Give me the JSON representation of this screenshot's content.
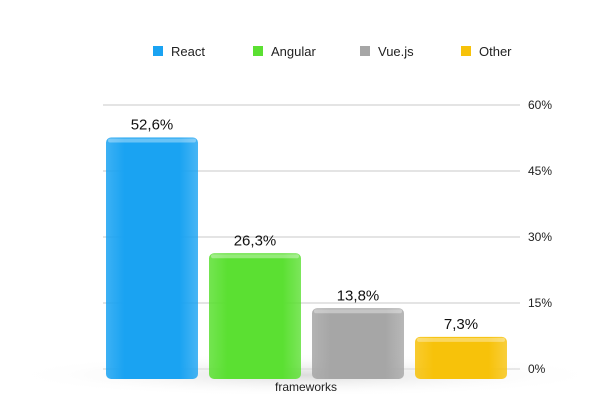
{
  "chart_data": {
    "type": "bar",
    "title": "",
    "xlabel": "frameworks",
    "ylabel": "",
    "ylim": [
      0,
      60
    ],
    "y_ticks": [
      "0%",
      "15%",
      "30%",
      "45%",
      "60%"
    ],
    "y_tick_values": [
      0,
      15,
      30,
      45,
      60
    ],
    "axis_position": "right",
    "grid": true,
    "legend_position": "top",
    "series": [
      {
        "name": "React",
        "values": [
          52.6
        ],
        "label": "52,6%",
        "color": "#1AA3F2"
      },
      {
        "name": "Angular",
        "values": [
          26.3
        ],
        "label": "26,3%",
        "color": "#5BE032"
      },
      {
        "name": "Vue.js",
        "values": [
          13.8
        ],
        "label": "13,8%",
        "color": "#A6A6A6"
      },
      {
        "name": "Other",
        "values": [
          7.3
        ],
        "label": "7,3%",
        "color": "#F7C20A"
      }
    ]
  }
}
